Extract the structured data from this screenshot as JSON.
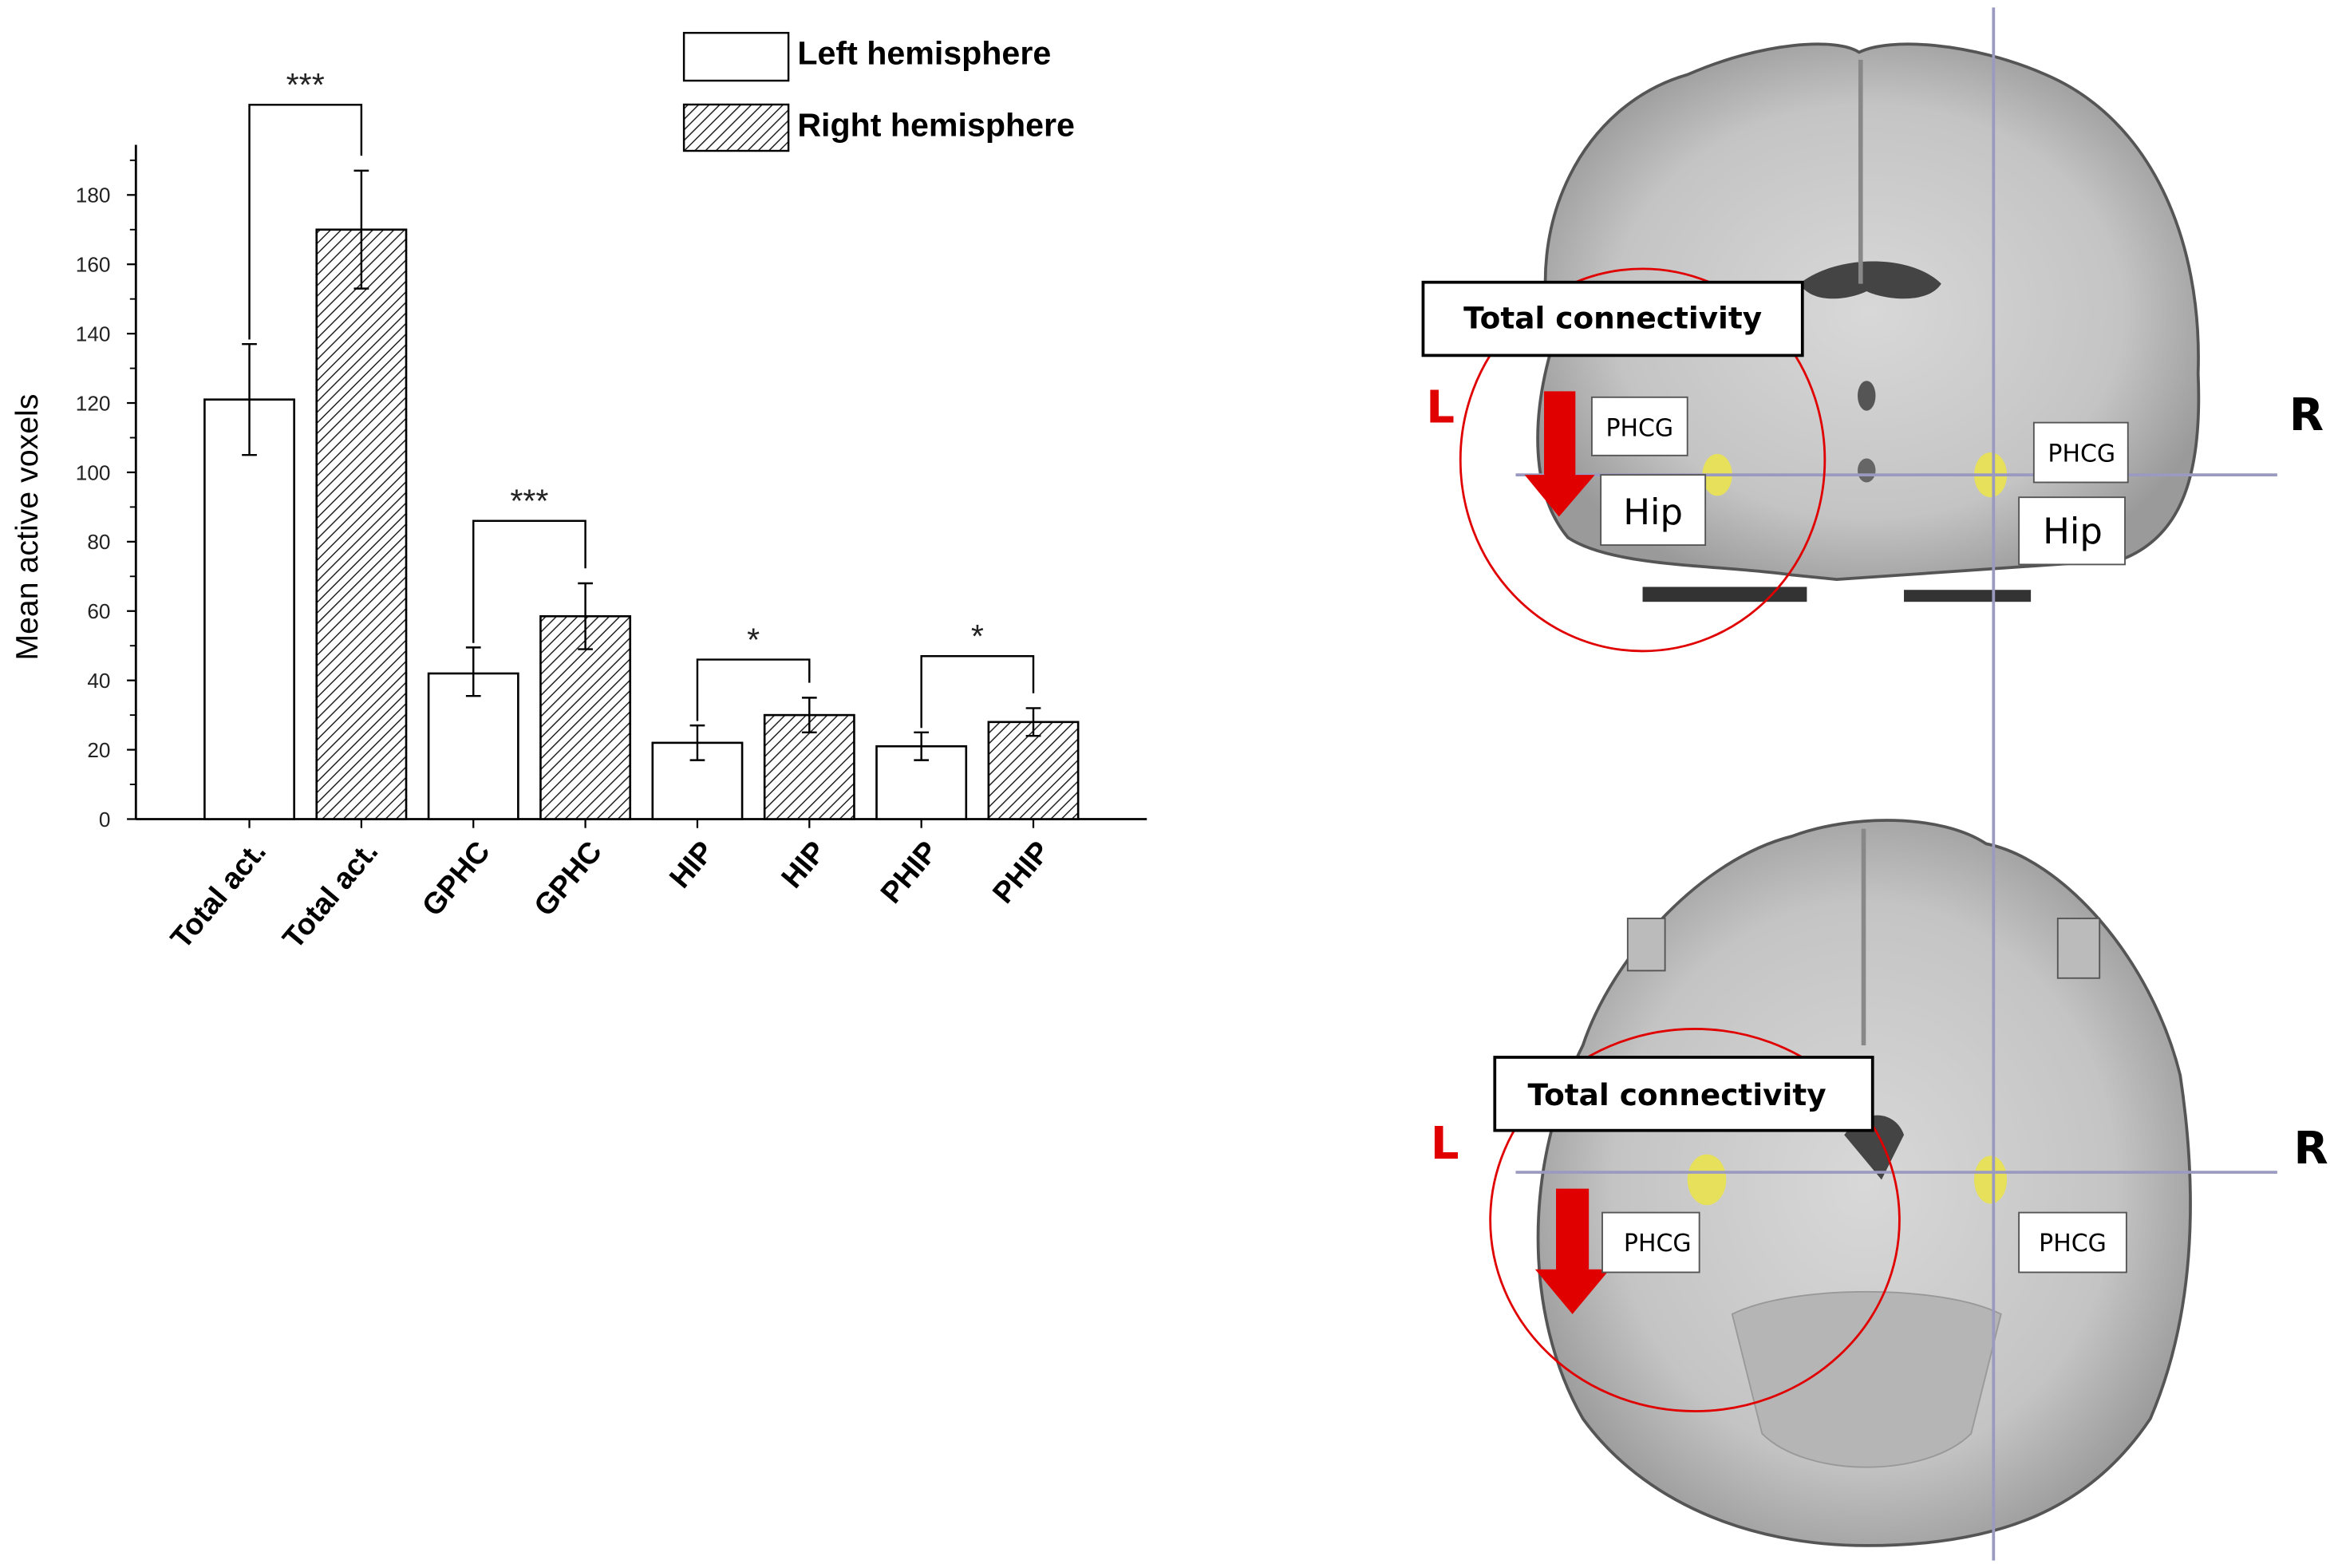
{
  "chart_data": {
    "type": "bar",
    "ylabel": "Mean active voxels",
    "xlabel": "",
    "ylim": [
      0,
      195
    ],
    "yticks": [
      0,
      20,
      40,
      60,
      80,
      100,
      120,
      140,
      160,
      180
    ],
    "categories": [
      "Total act.",
      "Total act.",
      "GPHC",
      "GPHC",
      "HIP",
      "HIP",
      "PHIP",
      "PHIP"
    ],
    "series_of_bar": [
      "Left hemisphere",
      "Right hemisphere",
      "Left hemisphere",
      "Right hemisphere",
      "Left hemisphere",
      "Right hemisphere",
      "Left hemisphere",
      "Right hemisphere"
    ],
    "values": [
      121,
      170,
      42,
      58.5,
      22,
      30,
      21,
      28
    ],
    "error_low": [
      105,
      153,
      35.5,
      49,
      17,
      25,
      17,
      24
    ],
    "error_high": [
      137,
      187,
      49.5,
      68,
      27,
      35,
      25,
      32
    ],
    "legend": [
      {
        "name": "Left hemisphere",
        "fill": "white"
      },
      {
        "name": "Right hemisphere",
        "fill": "hatched"
      }
    ],
    "legend_placement": "top-right",
    "significance": [
      {
        "pair": [
          0,
          1
        ],
        "label": "***",
        "level": 206
      },
      {
        "pair": [
          2,
          3
        ],
        "label": "***",
        "level": 86
      },
      {
        "pair": [
          4,
          5
        ],
        "label": "*",
        "level": 46
      },
      {
        "pair": [
          6,
          7
        ],
        "label": "*",
        "level": 47
      }
    ],
    "grid": false
  },
  "brain": {
    "top": {
      "title": "Total connectivity",
      "left": "L",
      "right": "R",
      "labels_left": [
        "PHCG",
        "Hip"
      ],
      "labels_right": [
        "PHCG",
        "Hip"
      ]
    },
    "bottom": {
      "title": "Total connectivity",
      "left": "L",
      "right": "R",
      "labels_left": [
        "PHCG"
      ],
      "labels_right": [
        "PHCG"
      ]
    },
    "colors": {
      "accent": "#e00000",
      "highlight": "#e6e05a",
      "crosshair": "#9a9ac0"
    }
  }
}
